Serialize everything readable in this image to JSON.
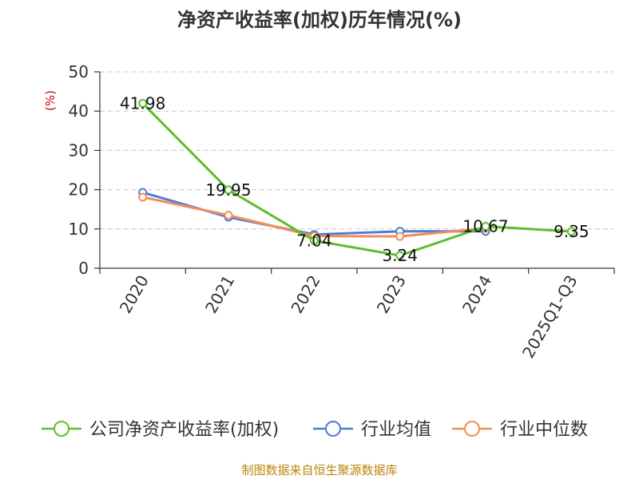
{
  "chart_data": {
    "type": "line",
    "title": "净资产收益率(加权)历年情况(%)",
    "ylabel": "(%)",
    "xlabel": "",
    "categories": [
      "2020",
      "2021",
      "2022",
      "2023",
      "2024",
      "2025Q1-Q3"
    ],
    "ylim": [
      0,
      50
    ],
    "yticks": [
      0,
      10,
      20,
      30,
      40,
      50
    ],
    "grid": true,
    "legend_position": "bottom",
    "series": [
      {
        "name": "公司净资产收益率(加权)",
        "values": [
          41.98,
          19.95,
          7.04,
          3.24,
          10.67,
          9.35
        ],
        "color": "#5cbf2a",
        "labels": [
          "41.98",
          "19.95",
          "7.04",
          "3.24",
          "10.67",
          "9.35"
        ]
      },
      {
        "name": "行业均值",
        "values": [
          19.3,
          13.0,
          8.6,
          9.4,
          9.4,
          null
        ],
        "color": "#4f7bd6"
      },
      {
        "name": "行业中位数",
        "values": [
          18.1,
          13.5,
          8.2,
          8.1,
          10.2,
          null
        ],
        "color": "#f28c5a"
      }
    ]
  },
  "source_text": "制图数据来自恒生聚源数据库"
}
